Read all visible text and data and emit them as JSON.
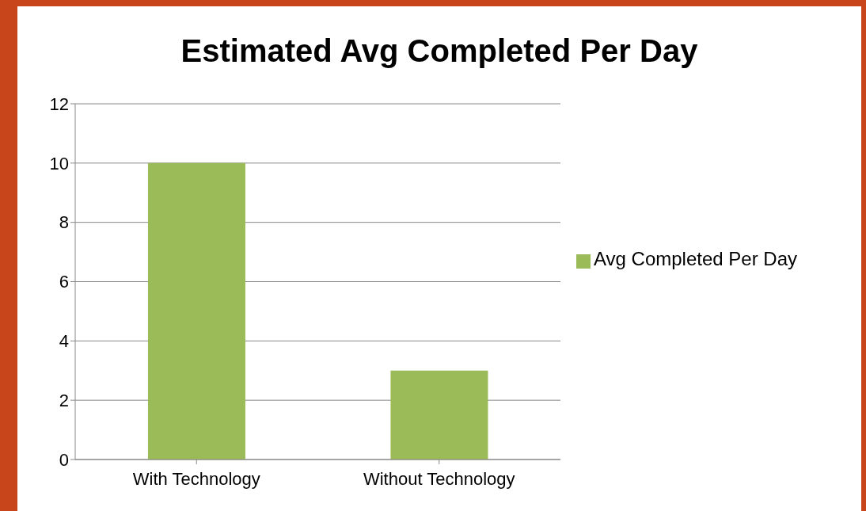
{
  "chart_data": {
    "type": "bar",
    "title": "Estimated Avg Completed Per Day",
    "categories": [
      "With Technology",
      "Without Technology"
    ],
    "series": [
      {
        "name": "Avg Completed Per Day",
        "color": "#9bbb59",
        "values": [
          10,
          3
        ]
      }
    ],
    "ylim": [
      0,
      12
    ],
    "yticks": [
      0,
      2,
      4,
      6,
      8,
      10,
      12
    ],
    "grid": "y",
    "legend": "right"
  }
}
